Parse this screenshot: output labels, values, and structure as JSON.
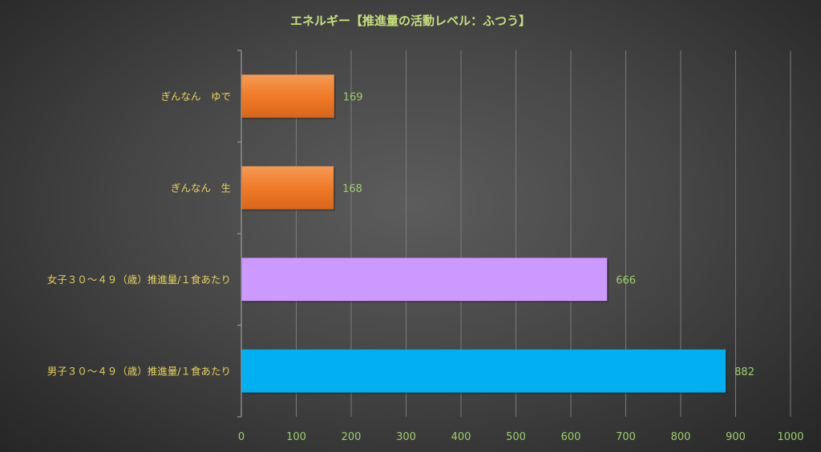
{
  "chart_data": {
    "type": "bar",
    "orientation": "horizontal",
    "title": "エネルギー【推進量の活動レベル：ふつう】",
    "categories": [
      "ぎんなん　ゆで",
      "ぎんなん　生",
      "女子３０～４９（歳）推進量/１食あたり",
      "男子３０～４９（歳）推進量/１食あたり"
    ],
    "values": [
      169,
      168,
      666,
      882
    ],
    "data_labels": [
      "169",
      "168",
      "666",
      "882"
    ],
    "bar_colors": [
      "#f07a28",
      "#f07a28",
      "#cc99ff",
      "#00b0f0"
    ],
    "xlim": [
      0,
      1000
    ],
    "xticks": [
      0,
      100,
      200,
      300,
      400,
      500,
      600,
      700,
      800,
      900,
      1000
    ],
    "xtick_labels": [
      "0",
      "100",
      "200",
      "300",
      "400",
      "500",
      "600",
      "700",
      "800",
      "900",
      "1000"
    ],
    "grid": "vertical",
    "legend": "none"
  }
}
